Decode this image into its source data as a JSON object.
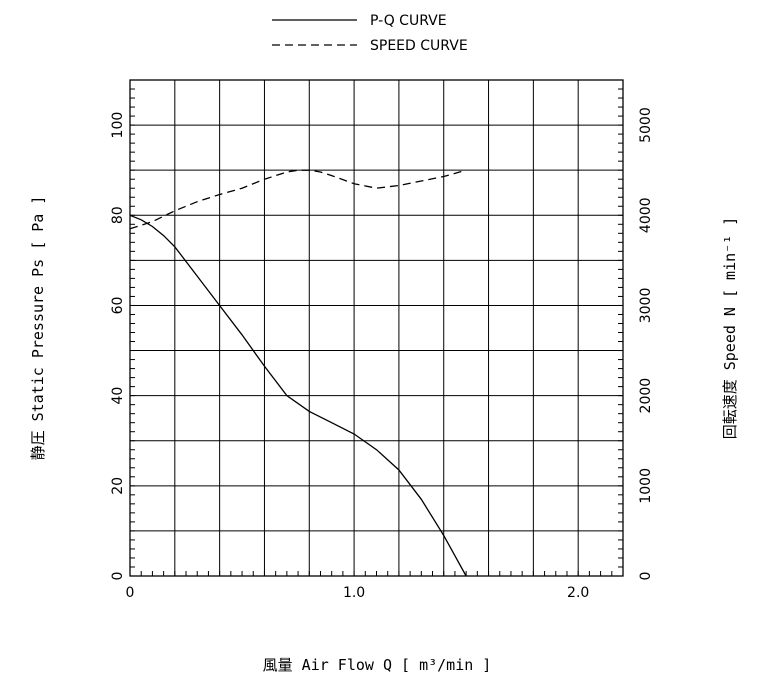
{
  "chart_data": {
    "type": "line",
    "legend": {
      "placement": "top-center",
      "entries": [
        {
          "label": "P-Q CURVE",
          "style": "solid"
        },
        {
          "label": "SPEED CURVE",
          "style": "dashed"
        }
      ]
    },
    "xlabel": "風量 Air Flow Q [ m³/min ]",
    "ylabel_left": "静圧 Static Pressure Ps [ Pa ]",
    "ylabel_right": "回転速度 Speed N [ min⁻¹ ]",
    "xlim": [
      0,
      2.2
    ],
    "ylim_left": [
      0,
      110
    ],
    "ylim_right": [
      0,
      5500
    ],
    "x_ticks": [
      {
        "value": 0,
        "label": "0"
      },
      {
        "value": 1.0,
        "label": "1.0"
      },
      {
        "value": 2.0,
        "label": "2.0"
      }
    ],
    "y_left_ticks": [
      {
        "value": 0,
        "label": "0"
      },
      {
        "value": 20,
        "label": "20"
      },
      {
        "value": 40,
        "label": "40"
      },
      {
        "value": 60,
        "label": "60"
      },
      {
        "value": 80,
        "label": "80"
      },
      {
        "value": 100,
        "label": "100"
      }
    ],
    "y_right_ticks": [
      {
        "value": 0,
        "label": "0"
      },
      {
        "value": 1000,
        "label": "1000"
      },
      {
        "value": 2000,
        "label": "2000"
      },
      {
        "value": 3000,
        "label": "3000"
      },
      {
        "value": 4000,
        "label": "4000"
      },
      {
        "value": 5000,
        "label": "5000"
      }
    ],
    "grid": true,
    "grid_x_step": 0.2,
    "grid_y_step": 10,
    "minor_tick_x_step": 0.05,
    "minor_tick_y_step": 2,
    "series": [
      {
        "name": "P-Q CURVE",
        "axis": "left",
        "style": "solid",
        "x": [
          0,
          0.05,
          0.1,
          0.15,
          0.2,
          0.3,
          0.4,
          0.5,
          0.6,
          0.7,
          0.8,
          0.9,
          1.0,
          1.1,
          1.2,
          1.3,
          1.4,
          1.45,
          1.5
        ],
        "y": [
          80,
          79,
          77.5,
          75.5,
          73,
          66.5,
          60,
          53.5,
          46.5,
          40,
          36.5,
          34,
          31.5,
          28,
          23.5,
          17,
          9,
          4.5,
          0
        ]
      },
      {
        "name": "SPEED CURVE",
        "axis": "right",
        "style": "dashed",
        "x": [
          0,
          0.1,
          0.2,
          0.3,
          0.4,
          0.5,
          0.6,
          0.7,
          0.75,
          0.8,
          0.85,
          0.9,
          1.0,
          1.1,
          1.2,
          1.3,
          1.4,
          1.5
        ],
        "y": [
          3850,
          3930,
          4050,
          4150,
          4230,
          4300,
          4400,
          4480,
          4500,
          4500,
          4480,
          4440,
          4350,
          4300,
          4330,
          4380,
          4430,
          4500
        ]
      }
    ]
  }
}
